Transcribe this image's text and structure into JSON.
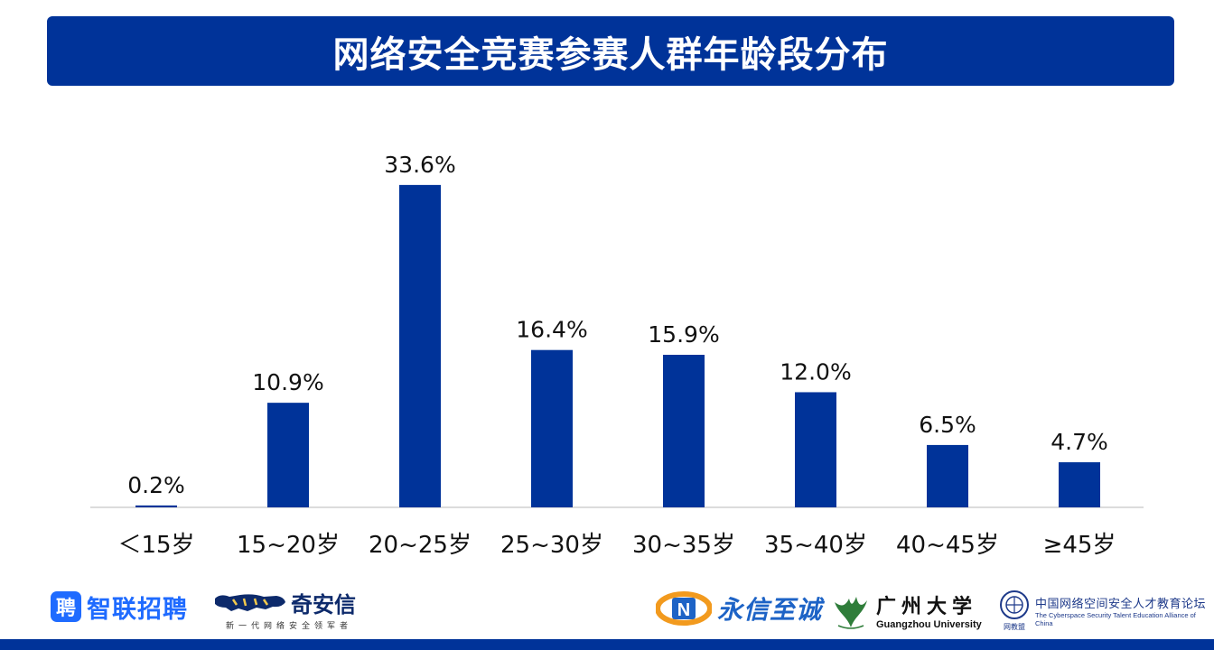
{
  "title": "网络安全竞赛参赛人群年龄段分布",
  "colors": {
    "primary": "#003399",
    "bar": "#003399",
    "axis": "#d0d0d0",
    "label_text": "#111111",
    "zhilian_blue": "#1f6bff",
    "qianxin_navy": "#0d2a6b",
    "yongxin_blue": "#1d63c6",
    "yongxin_orange": "#f29a1e",
    "gzhu_green": "#2f7d3a"
  },
  "chart_data": {
    "type": "bar",
    "title": "网络安全竞赛参赛人群年龄段分布",
    "categories": [
      "＜15岁",
      "15~20岁",
      "20~25岁",
      "25~30岁",
      "30~35岁",
      "35~40岁",
      "40~45岁",
      "≥45岁"
    ],
    "values": [
      0.2,
      10.9,
      33.6,
      16.4,
      15.9,
      12.0,
      6.5,
      4.7
    ],
    "value_labels": [
      "0.2%",
      "10.9%",
      "33.6%",
      "16.4%",
      "15.9%",
      "12.0%",
      "6.5%",
      "4.7%"
    ],
    "unit": "%",
    "ylim": [
      0,
      35
    ],
    "grid": false,
    "legend": "none"
  },
  "logos": {
    "zhilian": {
      "badge": "聘",
      "text": "智联招聘"
    },
    "qianxin": {
      "text": "奇安信",
      "subtitle": "新一代网络安全领军者"
    },
    "yongxin": {
      "mark": "N",
      "text": "永信至诚"
    },
    "gzhu": {
      "cn": "广州大学",
      "en": "Guangzhou University"
    },
    "alliance": {
      "cn": "中国网络空间安全人才教育论坛",
      "en": "The Cyberspace Security Talent Education Alliance of China",
      "tag": "网教盟"
    }
  }
}
